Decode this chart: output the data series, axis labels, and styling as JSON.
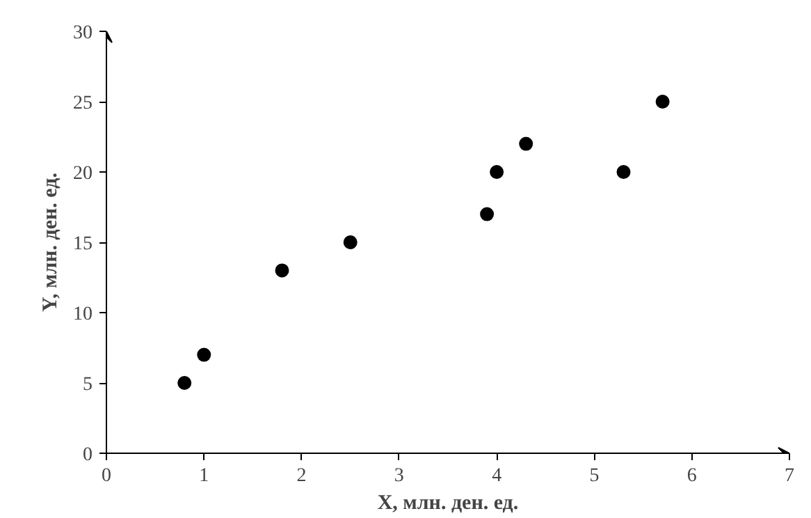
{
  "chart_data": {
    "type": "scatter",
    "xlabel": "X, млн. ден. ед.",
    "ylabel": "Y, млн. ден. ед.",
    "x": [
      0.8,
      1,
      1.8,
      2.5,
      3.9,
      4,
      4.3,
      5.3,
      5.7
    ],
    "series": [
      {
        "color": "#000000",
        "values": [
          5,
          7,
          13,
          15,
          17,
          20,
          22,
          20,
          25
        ]
      }
    ],
    "xlim": [
      0,
      7
    ],
    "xticks": [
      0,
      1,
      2,
      3,
      4,
      5,
      6,
      7
    ],
    "ylim": [
      0,
      30
    ],
    "yticks": [
      0,
      5,
      10,
      15,
      20,
      25,
      30
    ],
    "marker": "circle",
    "grid": false
  }
}
